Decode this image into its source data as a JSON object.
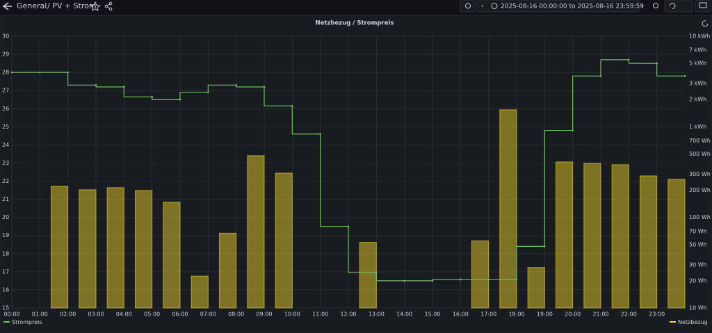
{
  "header": {
    "breadcrumb": [
      "General",
      "/ PV + Strom"
    ],
    "time_range": "2025-08-16 00:00:00 to 2025-08-16 23:59:59"
  },
  "chart_data": {
    "type": "line",
    "title": "Netzbezug / Strompreis",
    "xlim": [
      0,
      24
    ],
    "xticks": [
      {
        "value": 0,
        "label": "00:00"
      },
      {
        "value": 1,
        "label": "01:00"
      },
      {
        "value": 2,
        "label": "02:00"
      },
      {
        "value": 3,
        "label": "03:00"
      },
      {
        "value": 4,
        "label": "04:00"
      },
      {
        "value": 5,
        "label": "05:00"
      },
      {
        "value": 6,
        "label": "06:00"
      },
      {
        "value": 7,
        "label": "07:00"
      },
      {
        "value": 8,
        "label": "08:00"
      },
      {
        "value": 9,
        "label": "09:00"
      },
      {
        "value": 10,
        "label": "10:00"
      },
      {
        "value": 11,
        "label": "11:00"
      },
      {
        "value": 12,
        "label": "12:00"
      },
      {
        "value": 13,
        "label": "13:00"
      },
      {
        "value": 14,
        "label": "14:00"
      },
      {
        "value": 15,
        "label": "15:00"
      },
      {
        "value": 16,
        "label": "16:00"
      },
      {
        "value": 17,
        "label": "17:00"
      },
      {
        "value": 18,
        "label": "18:00"
      },
      {
        "value": 19,
        "label": "19:00"
      },
      {
        "value": 20,
        "label": "20:00"
      },
      {
        "value": 21,
        "label": "21:00"
      },
      {
        "value": 22,
        "label": "22:00"
      },
      {
        "value": 23,
        "label": "23:00"
      }
    ],
    "ylim": [
      15,
      30
    ],
    "yticks": [
      15,
      16,
      17,
      18,
      19,
      20,
      21,
      22,
      23,
      24,
      25,
      26,
      27,
      28,
      29,
      30
    ],
    "y2lim": [
      10,
      10000
    ],
    "y2log": true,
    "y2ticks": [
      {
        "value": 10,
        "label": "10 Wh"
      },
      {
        "value": 20,
        "label": "20 Wh"
      },
      {
        "value": 30,
        "label": "30 Wh"
      },
      {
        "value": 50,
        "label": "50 Wh"
      },
      {
        "value": 70,
        "label": "70 Wh"
      },
      {
        "value": 100,
        "label": "100 Wh"
      },
      {
        "value": 200,
        "label": "200 Wh"
      },
      {
        "value": 300,
        "label": "300 Wh"
      },
      {
        "value": 500,
        "label": "500 Wh"
      },
      {
        "value": 700,
        "label": "700 Wh"
      },
      {
        "value": 1000,
        "label": "1 kWh"
      },
      {
        "value": 2000,
        "label": "2 kWh"
      },
      {
        "value": 3000,
        "label": "3 kWh"
      },
      {
        "value": 5000,
        "label": "5 kWh"
      },
      {
        "value": 7000,
        "label": "7 kWh"
      },
      {
        "value": 10000,
        "label": "10 kWh"
      }
    ],
    "grid": true,
    "series": [
      {
        "name": "Strompreis",
        "color": "#73bf69",
        "kind": "step",
        "x": [
          0,
          1,
          2,
          3,
          4,
          5,
          6,
          7,
          8,
          9,
          10,
          11,
          12,
          13,
          14,
          15,
          16,
          17,
          18,
          19,
          20,
          21,
          22,
          23,
          24
        ],
        "values": [
          28.0,
          28.0,
          28.0,
          27.3,
          27.2,
          26.65,
          26.5,
          26.9,
          27.3,
          27.2,
          26.15,
          24.6,
          19.5,
          16.95,
          16.5,
          16.5,
          16.57,
          16.57,
          16.57,
          18.4,
          24.8,
          27.8,
          28.7,
          28.5,
          27.8
        ]
      },
      {
        "name": "Netzbezug",
        "color": "#fade2a",
        "kind": "bar",
        "axis": "y2",
        "x": [
          2,
          3,
          4,
          5,
          6,
          7,
          8,
          9,
          10,
          13,
          17,
          18,
          19,
          20,
          21,
          22,
          23,
          24
        ],
        "values": [
          220,
          202,
          213,
          198,
          147,
          22.5,
          67,
          480,
          308,
          53,
          55,
          1540,
          28,
          409,
          394,
          381,
          287,
          263
        ]
      }
    ]
  }
}
